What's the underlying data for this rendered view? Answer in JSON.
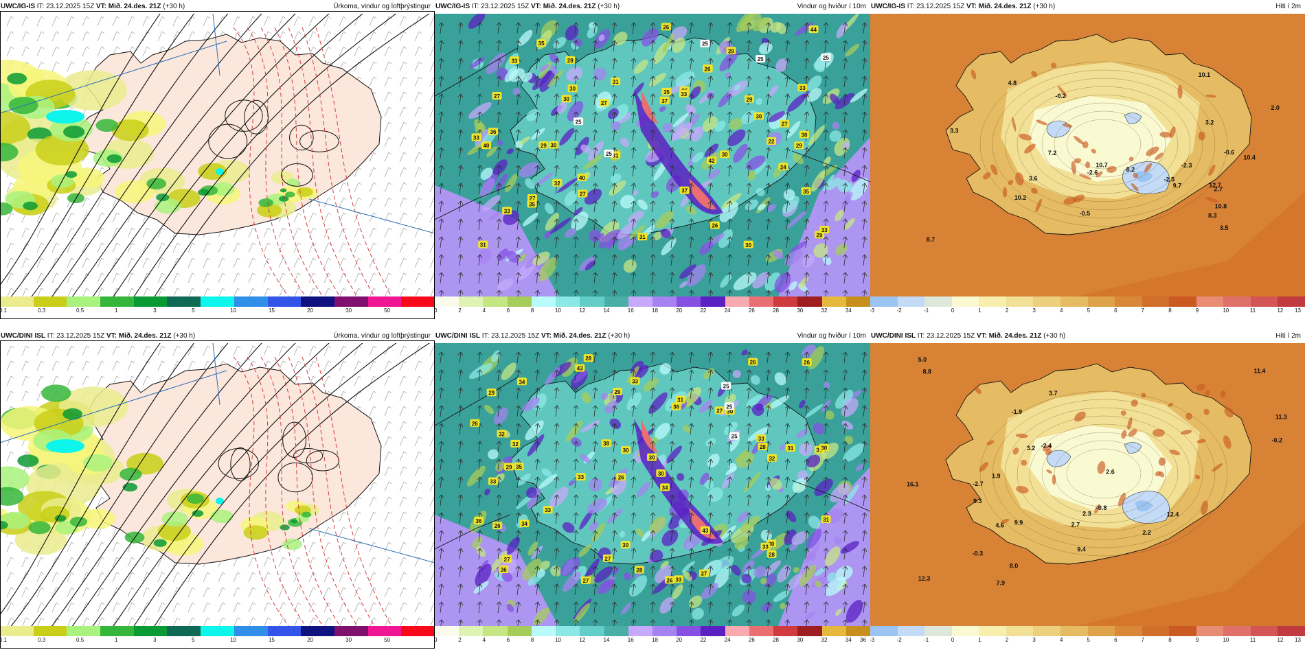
{
  "rows": [
    {
      "panels": [
        {
          "model": "UWC/IG-IS",
          "it": "IT: 23.12.2025 15Z",
          "vt": "VT: Mið. 24.des. 21Z",
          "lead": "(+30 h)",
          "title": "Úrkoma, vindur og loftþrýstingur",
          "scale": {
            "colors": [
              "#eaec8e",
              "#c9cf18",
              "#a9f27e",
              "#35b63a",
              "#0a9a34",
              "#0e6a55",
              "#0ef5ec",
              "#2f8ee8",
              "#3254e8",
              "#0e117e",
              "#80106f",
              "#f01593",
              "#f60a1a"
            ],
            "labels": [
              "0.1",
              "0.3",
              "0.5",
              "1",
              "3",
              "5",
              "10",
              "15",
              "20",
              "30",
              "50"
            ]
          },
          "labels": []
        },
        {
          "model": "UWC/IG-IS",
          "it": "IT: 23.12.2025 15Z",
          "vt": "VT: Mið. 24.des. 21Z",
          "lead": "(+30 h)",
          "title": "Vindur og hviður í 10m",
          "scale": {
            "colors": [
              "#fafbea",
              "#dff4b4",
              "#c6e684",
              "#a6cc59",
              "#b9fbfb",
              "#8be8e4",
              "#63cdc7",
              "#49aea6",
              "#c6a9fb",
              "#a683f0",
              "#8651e3",
              "#5a20c1",
              "#f8aab0",
              "#ea6f73",
              "#cf3b3e",
              "#9f1e22",
              "#e6b83c",
              "#c7901c"
            ],
            "labels": [
              "0",
              "2",
              "4",
              "6",
              "8",
              "10",
              "12",
              "14",
              "16",
              "18",
              "20",
              "22",
              "24",
              "26",
              "28",
              "30",
              "32",
              "34"
            ]
          },
          "labels": [
            "25",
            "27",
            "42",
            "37",
            "33",
            "35",
            "37",
            "26",
            "25",
            "40",
            "35",
            "30",
            "33",
            "30",
            "29",
            "40",
            "31",
            "27",
            "29",
            "35",
            "30",
            "31",
            "28",
            "33",
            "31",
            "25",
            "44",
            "36",
            "33",
            "29",
            "30",
            "32",
            "25",
            "26",
            "25",
            "27",
            "27",
            "35",
            "26",
            "30",
            "33",
            "29",
            "27",
            "22",
            "30",
            "31",
            "26",
            "30",
            "27",
            "29",
            "24",
            "33"
          ]
        },
        {
          "model": "UWC/IG-IS",
          "it": "IT: 23.12.2025 15Z",
          "vt": "VT: Mið. 24.des. 21Z",
          "lead": "(+30 h)",
          "title": "Hiti í 2m",
          "scale": {
            "colors": [
              "#9cc4f2",
              "#c3dbf7",
              "#dde8da",
              "#fafad2",
              "#f8efaf",
              "#f2e096",
              "#ecd07e",
              "#e5bc63",
              "#dea24a",
              "#d88838",
              "#d06f2a",
              "#cb5a22",
              "#e88c73",
              "#e0706a",
              "#d45555",
              "#c03a3f"
            ],
            "labels": [
              "-3",
              "-2",
              "-1",
              "0",
              "1",
              "2",
              "3",
              "4",
              "5",
              "6",
              "7",
              "8",
              "9",
              "10",
              "11",
              "12",
              "13"
            ]
          },
          "labels": [
            "3.5",
            "8.7",
            "4.8",
            "10.2",
            "2.0",
            "9.7",
            "10.7",
            "10.1",
            "12.7",
            "10.8",
            "8.3",
            "10.4",
            "8.2",
            "7.2",
            "3.6",
            "3.3",
            "2.7",
            "-0.2",
            "-2.3",
            "-2.6",
            "-0.5",
            "3.2",
            "-2.5",
            "-0.6"
          ]
        }
      ]
    },
    {
      "panels": [
        {
          "model": "UWC/DINI ISL",
          "it": "IT: 23.12.2025 15Z",
          "vt": "VT: Mið. 24.des. 21Z",
          "lead": "(+30 h)",
          "title": "Úrkoma, vindur og loftþrýstingur",
          "scale": {
            "colors": [
              "#eaec8e",
              "#c9cf18",
              "#a9f27e",
              "#35b63a",
              "#0a9a34",
              "#0e6a55",
              "#0ef5ec",
              "#2f8ee8",
              "#3254e8",
              "#0e117e",
              "#80106f",
              "#f01593",
              "#f60a1a"
            ],
            "labels": [
              "0.1",
              "0.3",
              "0.5",
              "1",
              "3",
              "5",
              "10",
              "15",
              "20",
              "30",
              "50"
            ]
          },
          "labels": []
        },
        {
          "model": "UWC/DINI ISL",
          "it": "IT: 23.12.2025 15Z",
          "vt": "VT: Mið. 24.des. 21Z",
          "lead": "(+30 h)",
          "title": "Vindur og hviður í 10m",
          "scale": {
            "colors": [
              "#fafbea",
              "#dff4b4",
              "#c6e684",
              "#a6cc59",
              "#b9fbfb",
              "#8be8e4",
              "#63cdc7",
              "#49aea6",
              "#c6a9fb",
              "#a683f0",
              "#8651e3",
              "#5a20c1",
              "#f8aab0",
              "#ea6f73",
              "#cf3b3e",
              "#9f1e22",
              "#e6b83c",
              "#c7901c"
            ],
            "labels": [
              "0",
              "2",
              "4",
              "6",
              "8",
              "10",
              "12",
              "14",
              "16",
              "18",
              "20",
              "22",
              "24",
              "26",
              "28",
              "30",
              "32",
              "34",
              "36"
            ]
          },
          "labels": [
            "28",
            "25",
            "36",
            "26",
            "34",
            "35",
            "29",
            "27",
            "33",
            "36",
            "30",
            "36",
            "43",
            "33",
            "26",
            "33",
            "30",
            "26",
            "25",
            "33",
            "32",
            "29",
            "30",
            "31",
            "36",
            "32",
            "30",
            "28",
            "30",
            "26",
            "33",
            "31",
            "34",
            "38",
            "43",
            "31",
            "33",
            "27",
            "26",
            "33",
            "27",
            "27",
            "27",
            "34",
            "28",
            "30",
            "28",
            "25",
            "26",
            "30",
            "29",
            "32"
          ]
        },
        {
          "model": "UWC/DINI ISL",
          "it": "IT: 23.12.2025 15Z",
          "vt": "VT: Mið. 24.des. 21Z",
          "lead": "(+30 h)",
          "title": "Hiti í 2m",
          "scale": {
            "colors": [
              "#9cc4f2",
              "#c3dbf7",
              "#dde8da",
              "#fafad2",
              "#f8efaf",
              "#f2e096",
              "#ecd07e",
              "#e5bc63",
              "#dea24a",
              "#d88838",
              "#d06f2a",
              "#cb5a22",
              "#e88c73",
              "#e0706a",
              "#d45555",
              "#c03a3f"
            ],
            "labels": [
              "-3",
              "-2",
              "-1",
              "0",
              "1",
              "2",
              "3",
              "4",
              "5",
              "6",
              "7",
              "8",
              "9",
              "10",
              "11",
              "12",
              "13"
            ]
          },
          "labels": [
            "8.8",
            "5.0",
            "16.1",
            "11.4",
            "11.3",
            "2.2",
            "3.7",
            "9.9",
            "12.3",
            "12.4",
            "4.6",
            "2.6",
            "7.9",
            "9.3",
            "2.3",
            "3.2",
            "2.7",
            "-0.3",
            "-1.9",
            "-2.4",
            "-0.2",
            "9.4",
            "8.0",
            "1.9",
            "-2.7",
            "-0.8"
          ]
        }
      ]
    }
  ],
  "colors": {
    "coast": "#111111",
    "isobar": "#111111",
    "isotherm": "#d23b3b",
    "lat_line": "#2a6eb5"
  }
}
